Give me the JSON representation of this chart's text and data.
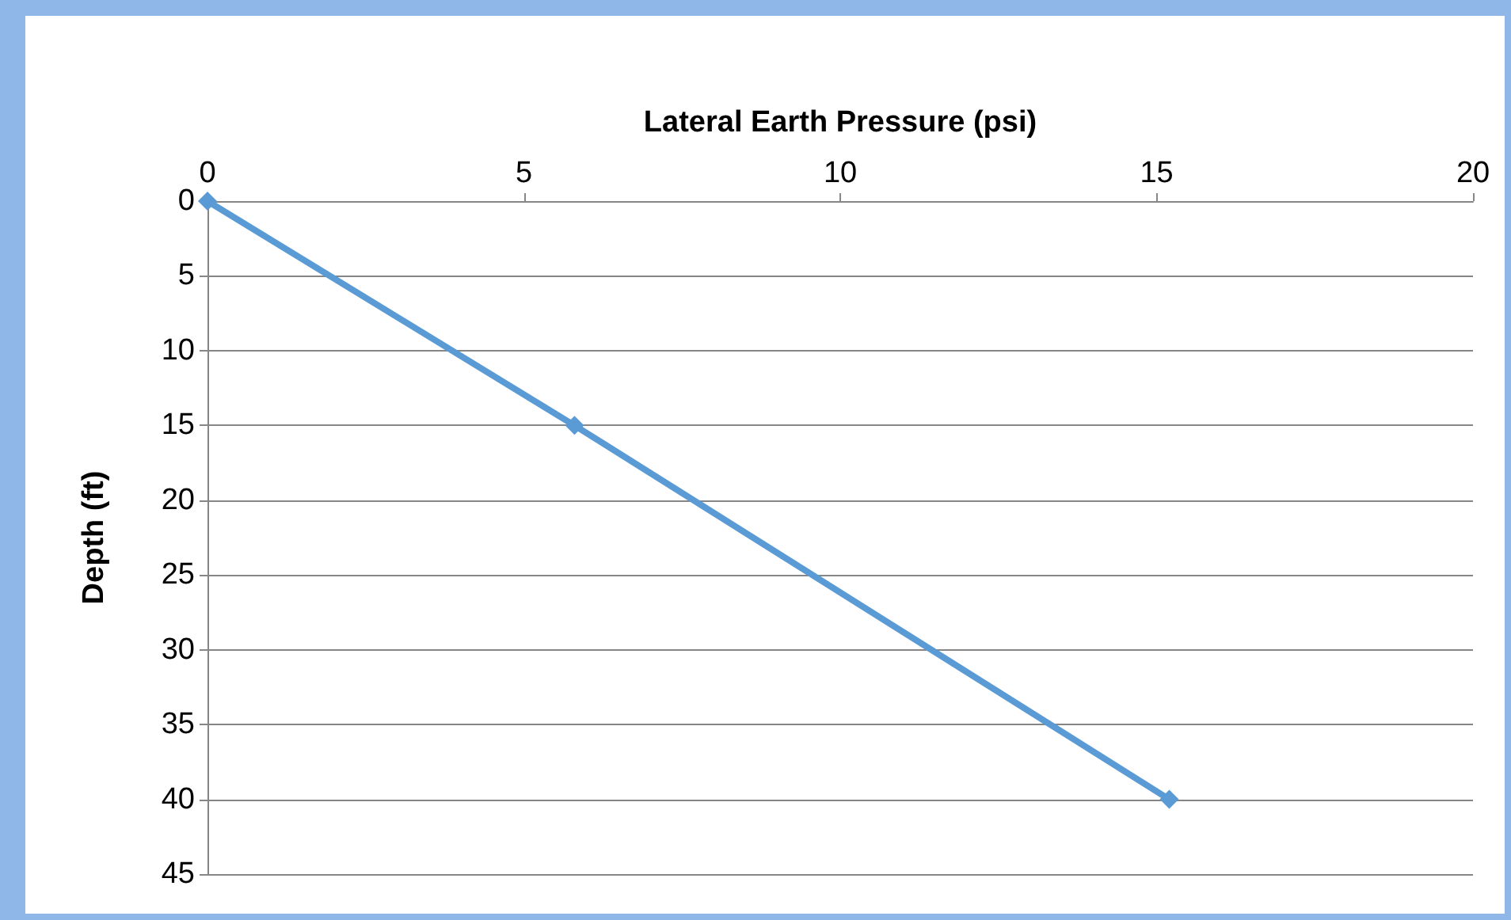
{
  "chart_data": {
    "type": "line",
    "xlabel": "Lateral Earth Pressure (psi)",
    "ylabel": "Depth (ft)",
    "x": [
      0,
      5.8,
      15.2
    ],
    "series": [
      {
        "color": "#5b9bd5",
        "values": [
          0,
          15,
          40
        ]
      }
    ],
    "xlim": [
      0,
      20
    ],
    "xticks": [
      0,
      5,
      10,
      15,
      20
    ],
    "ylim": [
      45,
      0
    ],
    "yticks": [
      0,
      5,
      10,
      15,
      20,
      25,
      30,
      35,
      40,
      45
    ],
    "grid": "y",
    "marker": "diamond",
    "line_style": "solid"
  }
}
